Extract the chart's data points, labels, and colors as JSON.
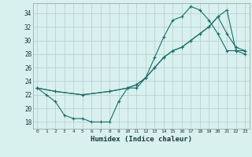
{
  "xlabel": "Humidex (Indice chaleur)",
  "background_color": "#d8f0ee",
  "line_color": "#1a6e6a",
  "grid_color": "#b0cece",
  "xlim": [
    -0.5,
    23.5
  ],
  "ylim": [
    17.0,
    35.5
  ],
  "xticks": [
    0,
    1,
    2,
    3,
    4,
    5,
    6,
    7,
    8,
    9,
    10,
    11,
    12,
    13,
    14,
    15,
    16,
    17,
    18,
    19,
    20,
    21,
    22,
    23
  ],
  "yticks": [
    18,
    20,
    22,
    24,
    26,
    28,
    30,
    32,
    34
  ],
  "line1_x": [
    0,
    1,
    2,
    3,
    4,
    5,
    6,
    7,
    8,
    9,
    10,
    11,
    12,
    13,
    14,
    15,
    16,
    17,
    18,
    19,
    20,
    21,
    22,
    23
  ],
  "line1_y": [
    23,
    22,
    21,
    19,
    18.5,
    18.5,
    18,
    18,
    18,
    21,
    23,
    23,
    24.5,
    27.5,
    30.5,
    33,
    33.5,
    35,
    34.5,
    33,
    31,
    28.5,
    28.5,
    28
  ],
  "line2_x": [
    0,
    2,
    5,
    8,
    10,
    11,
    12,
    13,
    14,
    15,
    16,
    17,
    18,
    19,
    20,
    21,
    22,
    23
  ],
  "line2_y": [
    23,
    22.5,
    22,
    22.5,
    23,
    23.5,
    24.5,
    26,
    27.5,
    28.5,
    29,
    30,
    31,
    32,
    33.5,
    31,
    29,
    28.5
  ],
  "line3_x": [
    0,
    2,
    5,
    8,
    10,
    11,
    12,
    13,
    14,
    15,
    16,
    17,
    18,
    19,
    20,
    21,
    22,
    23
  ],
  "line3_y": [
    23,
    22.5,
    22,
    22.5,
    23,
    23.5,
    24.5,
    26,
    27.5,
    28.5,
    29,
    30,
    31,
    32,
    33.5,
    34.5,
    28.5,
    28.5
  ]
}
